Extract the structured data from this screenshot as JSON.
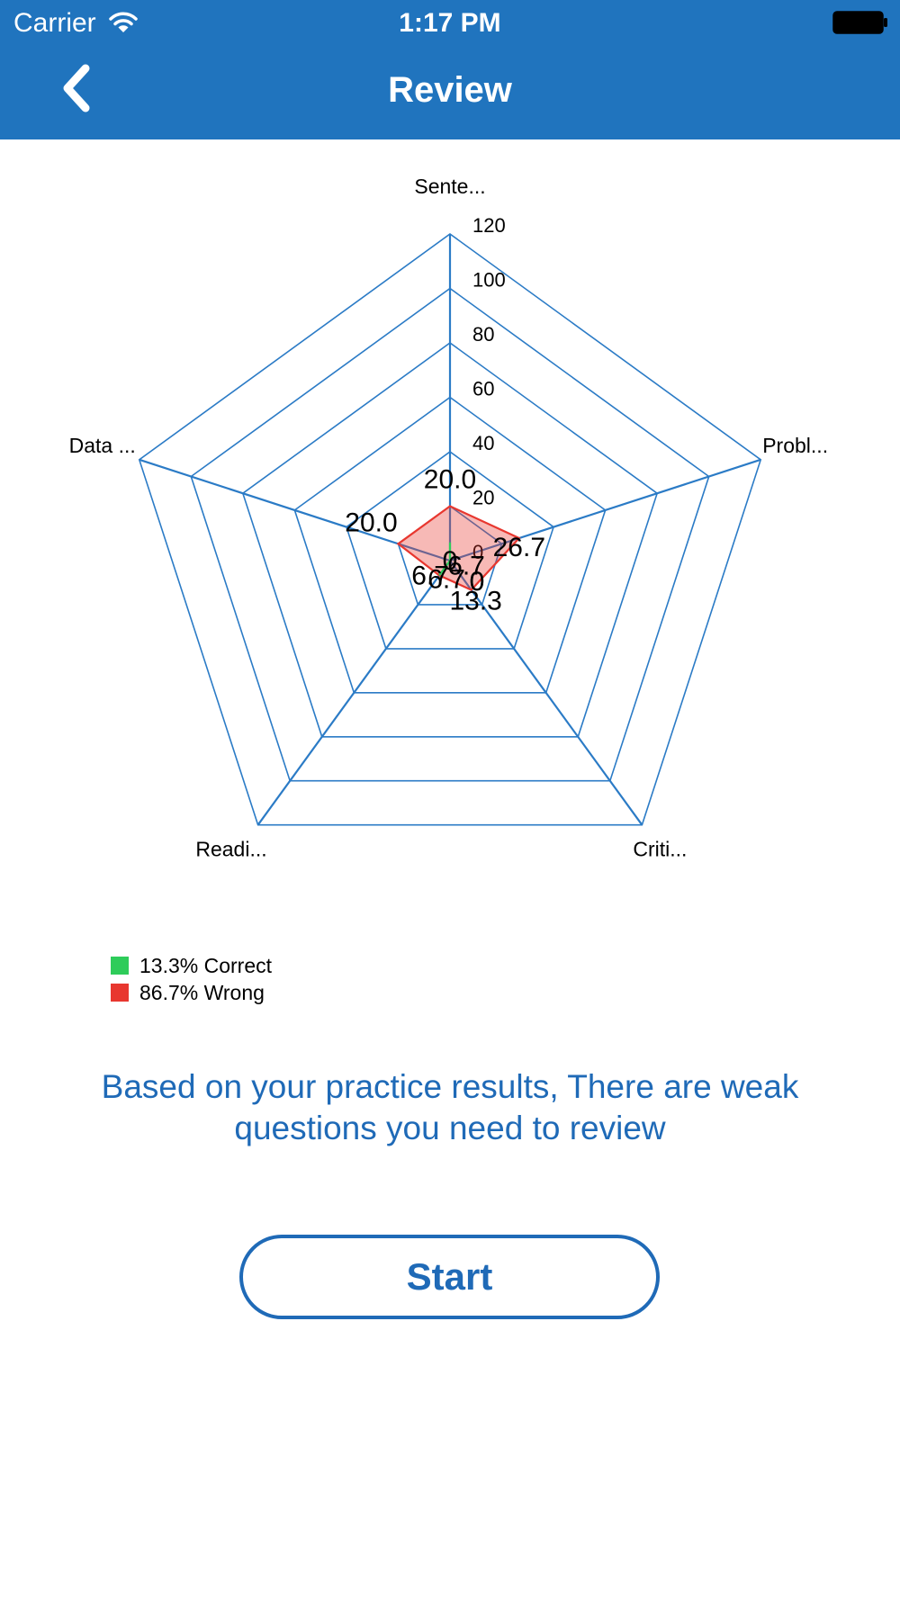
{
  "status_bar": {
    "carrier": "Carrier",
    "time": "1:17 PM"
  },
  "nav": {
    "title": "Review",
    "back_icon": "chevron-left-icon"
  },
  "chart_data": {
    "type": "radar",
    "axes": [
      "Sente...",
      "Probl...",
      "Criti...",
      "Readi...",
      "Data ..."
    ],
    "ticks": [
      0,
      20,
      40,
      60,
      80,
      100,
      120
    ],
    "range": [
      0,
      120
    ],
    "series": [
      {
        "name": "Wrong",
        "color": "#e8372f",
        "values": [
          20.0,
          26.7,
          13.3,
          6.7,
          20.0
        ],
        "labels": [
          "20.0",
          "26.7",
          "13.3",
          "6.7",
          "20.0"
        ]
      },
      {
        "name": "Correct",
        "color": "#2ecc5a",
        "values": [
          6.7,
          0,
          0,
          6.7,
          0
        ],
        "labels": [
          "6.7",
          "0",
          "0",
          "6.7",
          "0"
        ]
      }
    ],
    "grid_color": "#2b7bc6"
  },
  "legend": {
    "correct_label": "13.3% Correct",
    "wrong_label": "86.7% Wrong",
    "correct_color": "#2ecc5a",
    "wrong_color": "#e8372f"
  },
  "message": "Based on your practice results, There are weak questions you need to review",
  "start_button_label": "Start"
}
